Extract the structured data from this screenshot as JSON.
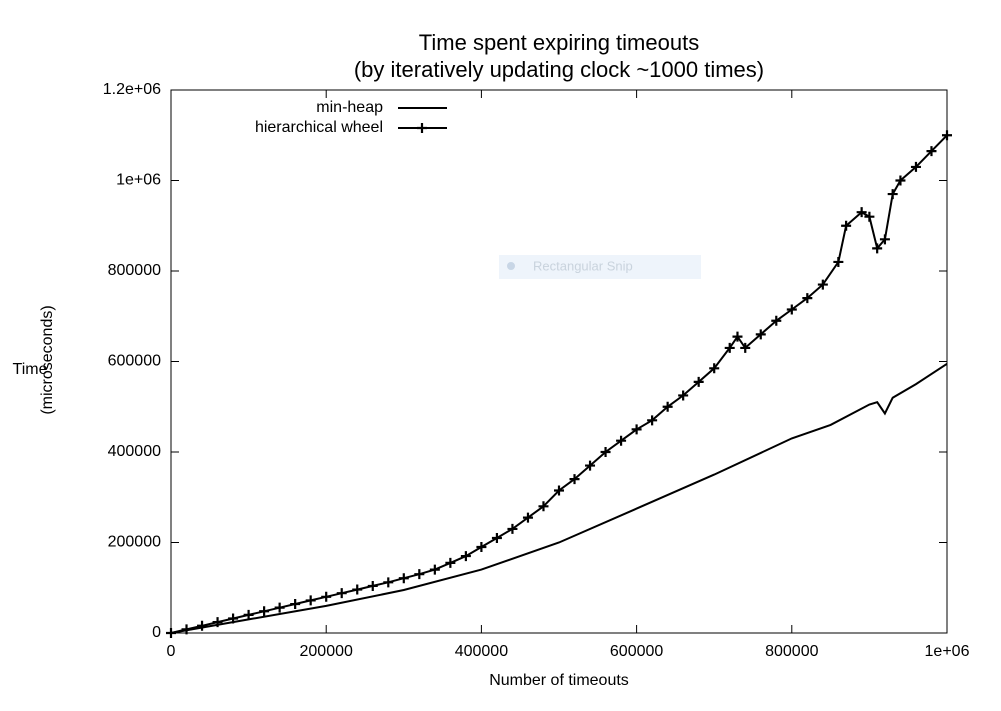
{
  "chart_data": {
    "type": "line",
    "title": [
      "Time spent expiring timeouts",
      "(by iteratively updating clock ~1000 times)"
    ],
    "xlabel": "Number of timeouts",
    "ylabel": [
      "Time",
      "(microseconds)"
    ],
    "annotation": "Rectangular Snip",
    "xlim": [
      0,
      1000000
    ],
    "ylim": [
      0,
      1200000
    ],
    "xticks": [
      0,
      200000,
      400000,
      600000,
      800000,
      {
        "value": 1000000,
        "label": "1e+06"
      }
    ],
    "yticks": [
      0,
      200000,
      400000,
      600000,
      800000,
      {
        "value": 1000000,
        "label": "1e+06"
      },
      {
        "value": 1200000,
        "label": "1.2e+06"
      }
    ],
    "legend": "top-left",
    "series": [
      {
        "name": "min-heap",
        "color": "#000000",
        "marker": "none",
        "x": [
          0,
          100000,
          200000,
          300000,
          400000,
          500000,
          600000,
          700000,
          800000,
          850000,
          900000,
          910000,
          920000,
          930000,
          960000,
          1000000
        ],
        "values": [
          0,
          30000,
          60000,
          95000,
          140000,
          200000,
          275000,
          350000,
          430000,
          460000,
          505000,
          510000,
          485000,
          520000,
          550000,
          595000
        ]
      },
      {
        "name": "hierarchical wheel",
        "color": "#000000",
        "marker": "plus",
        "x": [
          0,
          20000,
          40000,
          60000,
          80000,
          100000,
          120000,
          140000,
          160000,
          180000,
          200000,
          220000,
          240000,
          260000,
          280000,
          300000,
          320000,
          340000,
          360000,
          380000,
          400000,
          420000,
          440000,
          460000,
          480000,
          500000,
          520000,
          540000,
          560000,
          580000,
          600000,
          620000,
          640000,
          660000,
          680000,
          700000,
          720000,
          730000,
          740000,
          760000,
          780000,
          800000,
          820000,
          840000,
          860000,
          870000,
          890000,
          900000,
          910000,
          920000,
          930000,
          940000,
          960000,
          980000,
          1000000
        ],
        "values": [
          0,
          8000,
          16000,
          24000,
          32000,
          40000,
          48000,
          56000,
          64000,
          72000,
          80000,
          88000,
          96000,
          104000,
          112000,
          121000,
          130000,
          140000,
          155000,
          170000,
          190000,
          210000,
          230000,
          255000,
          280000,
          315000,
          340000,
          370000,
          400000,
          425000,
          450000,
          470000,
          500000,
          525000,
          555000,
          585000,
          630000,
          655000,
          630000,
          660000,
          690000,
          715000,
          740000,
          770000,
          820000,
          900000,
          930000,
          920000,
          850000,
          870000,
          970000,
          1000000,
          1030000,
          1065000,
          1100000
        ]
      }
    ]
  }
}
